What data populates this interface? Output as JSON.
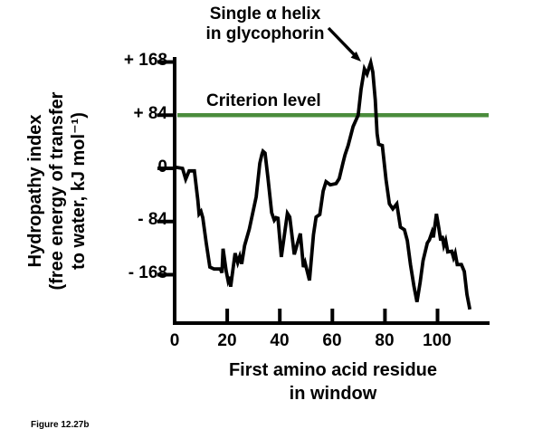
{
  "figure": {
    "annotation_line1": "Single α helix",
    "annotation_line2": "in glycophorin",
    "criterion_label": "Criterion level",
    "caption": "Figure 12.27b"
  },
  "chart_data": {
    "type": "line",
    "title": "",
    "xlabel_line1": "First amino acid residue",
    "xlabel_line2": "in window",
    "ylabel_line1": "Hydropathy index",
    "ylabel_line2": "(free energy of transfer",
    "ylabel_line3": "to water, kJ mol⁻¹)",
    "x_tick_labels": [
      "0",
      "20",
      "40",
      "60",
      "80",
      "100"
    ],
    "x_tick_values": [
      0,
      20,
      40,
      60,
      80,
      100
    ],
    "y_tick_labels": [
      "+ 168",
      "+ 84",
      "0",
      "- 84",
      "- 168"
    ],
    "y_tick_values": [
      168,
      84,
      0,
      -84,
      -168
    ],
    "xlim": [
      0,
      120
    ],
    "ylim": [
      -240,
      195
    ],
    "grid": false,
    "legend": "none",
    "criterion_level": 84,
    "criterion_color": "#4a8c3c",
    "line_color": "#000000",
    "series": [
      {
        "name": "hydropathy",
        "points": [
          [
            0,
            2
          ],
          [
            3,
            0
          ],
          [
            4.2,
            -17
          ],
          [
            5.5,
            -4
          ],
          [
            7.5,
            -4
          ],
          [
            8.8,
            -50
          ],
          [
            9.3,
            -72
          ],
          [
            10,
            -68
          ],
          [
            10.7,
            -78
          ],
          [
            12,
            -118
          ],
          [
            13.4,
            -156
          ],
          [
            15,
            -159
          ],
          [
            17.4,
            -159
          ],
          [
            18,
            -165
          ],
          [
            18.4,
            -127
          ],
          [
            19.6,
            -162
          ],
          [
            20.3,
            -177
          ],
          [
            20.8,
            -171
          ],
          [
            21.3,
            -187
          ],
          [
            23,
            -134
          ],
          [
            24,
            -149
          ],
          [
            24.8,
            -139
          ],
          [
            25.5,
            -151
          ],
          [
            26.6,
            -122
          ],
          [
            28.4,
            -96
          ],
          [
            31,
            -45
          ],
          [
            32.4,
            8
          ],
          [
            33.2,
            22
          ],
          [
            33.6,
            27
          ],
          [
            34.4,
            24
          ],
          [
            35.5,
            -15
          ],
          [
            36.9,
            -70
          ],
          [
            37.9,
            -82
          ],
          [
            38.6,
            -78
          ],
          [
            39.3,
            -79
          ],
          [
            40.6,
            -140
          ],
          [
            42.9,
            -71
          ],
          [
            43.8,
            -77
          ],
          [
            45.5,
            -136
          ],
          [
            47.8,
            -103
          ],
          [
            49,
            -156
          ],
          [
            49.6,
            -149
          ],
          [
            51.3,
            -177
          ],
          [
            52.8,
            -105
          ],
          [
            53.8,
            -77
          ],
          [
            55.2,
            -73
          ],
          [
            56.5,
            -36
          ],
          [
            57.6,
            -21
          ],
          [
            59.2,
            -26
          ],
          [
            61.4,
            -24
          ],
          [
            62.6,
            -16
          ],
          [
            64,
            8
          ],
          [
            64.8,
            21
          ],
          [
            66,
            36
          ],
          [
            67.9,
            66
          ],
          [
            69.8,
            84
          ],
          [
            70.9,
            125
          ],
          [
            72.2,
            157
          ],
          [
            73.2,
            149
          ],
          [
            74.6,
            167
          ],
          [
            75.4,
            152
          ],
          [
            76.3,
            108
          ],
          [
            77,
            55
          ],
          [
            77.6,
            38
          ],
          [
            79,
            36
          ],
          [
            80.4,
            -18
          ],
          [
            81.7,
            -56
          ],
          [
            83,
            -64
          ],
          [
            84.5,
            -56
          ],
          [
            85.9,
            -93
          ],
          [
            87.4,
            -97
          ],
          [
            88.5,
            -114
          ],
          [
            89.7,
            -152
          ],
          [
            91,
            -186
          ],
          [
            92.2,
            -211
          ],
          [
            93.4,
            -180
          ],
          [
            94.5,
            -146
          ],
          [
            96.1,
            -118
          ],
          [
            96.9,
            -113
          ],
          [
            97.9,
            -101
          ],
          [
            98.4,
            -109
          ],
          [
            99.6,
            -72
          ],
          [
            100.5,
            -95
          ],
          [
            101.2,
            -114
          ],
          [
            101.8,
            -107
          ],
          [
            102.4,
            -122
          ],
          [
            103.1,
            -114
          ],
          [
            103.9,
            -132
          ],
          [
            105.4,
            -131
          ],
          [
            106.1,
            -141
          ],
          [
            106.7,
            -134
          ],
          [
            107.5,
            -152
          ],
          [
            109.1,
            -152
          ],
          [
            110.2,
            -163
          ],
          [
            111.2,
            -199
          ],
          [
            112.3,
            -223
          ]
        ]
      }
    ]
  }
}
